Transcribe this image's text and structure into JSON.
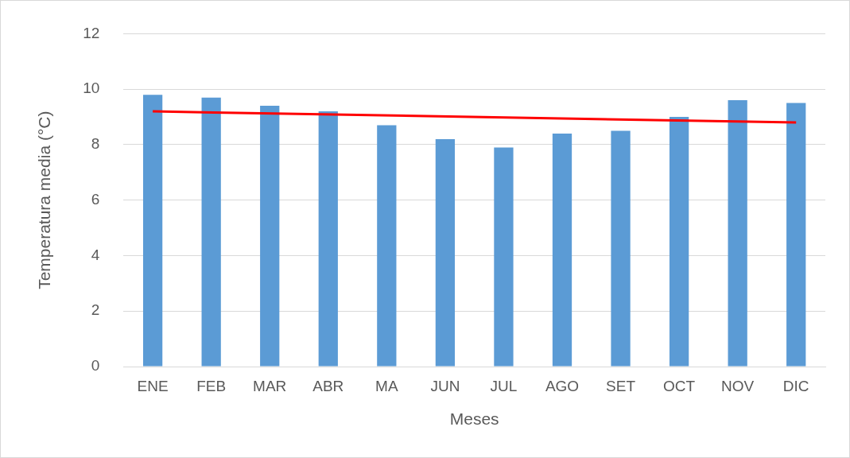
{
  "chart_data": {
    "type": "bar",
    "xlabel": "Meses",
    "ylabel": "Temperatura media (°C)",
    "categories": [
      "ENE",
      "FEB",
      "MAR",
      "ABR",
      "MA",
      "JUN",
      "JUL",
      "AGO",
      "SET",
      "OCT",
      "NOV",
      "DIC"
    ],
    "series": [
      {
        "color": "#5b9bd5",
        "values": [
          9.8,
          9.7,
          9.4,
          9.2,
          8.7,
          8.2,
          7.9,
          8.4,
          8.5,
          9.0,
          9.6,
          9.5
        ]
      },
      {
        "type": "line",
        "color": "#ff0000",
        "x": [
          "ENE",
          "DIC"
        ],
        "values": [
          9.2,
          8.8
        ],
        "marker": "none"
      }
    ],
    "ylim": [
      0,
      12
    ],
    "yticks": [
      0,
      2,
      4,
      6,
      8,
      10,
      12
    ],
    "grid": "y",
    "legend": false
  }
}
